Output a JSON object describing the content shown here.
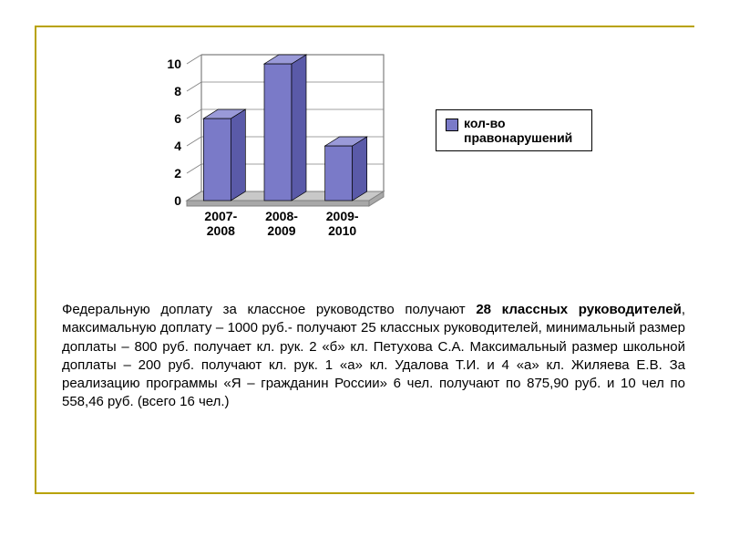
{
  "accent_color": "#b8a200",
  "chart": {
    "type": "bar-3d",
    "categories": [
      "2007-2008",
      "2008-2009",
      "2009-2010"
    ],
    "values": [
      6,
      10,
      4
    ],
    "ylim": [
      0,
      10
    ],
    "ytick_step": 2,
    "bar_fill": "#7a7ac8",
    "bar_side": "#5a5aa8",
    "bar_top": "#9a9ad8",
    "floor_fill": "#c8c8c8",
    "floor_side": "#a8a8a8",
    "wall_stroke": "#808080",
    "background_color": "#ffffff",
    "tick_label_fontsize": 14,
    "tick_label_weight": "bold"
  },
  "legend": {
    "swatch_color": "#7a7ac8",
    "text": "кол-во правонарушений"
  },
  "paragraph": {
    "prefix": "Федеральную доплату за классное руководство получают ",
    "bold": "28 классных руководителей",
    "suffix": ", максимальную доплату – 1000 руб.-  получают 25 классных руководителей, минимальный размер доплаты – 800 руб. получает кл. рук. 2 «б» кл. Петухова С.А. Максимальный размер школьной доплаты – 200 руб. получают кл. рук. 1 «а» кл. Удалова Т.И. и 4 «а» кл. Жиляева Е.В. За реализацию программы «Я – гражданин России» 6 чел. получают по 875,90 руб. и  10 чел  по 558,46 руб. (всего 16 чел.)"
  }
}
